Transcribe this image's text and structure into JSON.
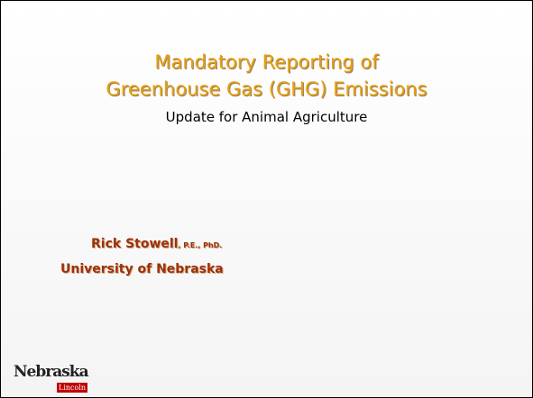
{
  "title": [
    "Mandatory Reporting of",
    "Greenhouse Gas (GHG) Emissions"
  ],
  "subtitle": "Update for Animal Agriculture",
  "author": {
    "name": "Rick Stowell",
    "credentials": ", P.E., PhD.",
    "affiliation": "University of Nebraska"
  },
  "logo": {
    "text": "Nebraska",
    "sub": "Lincoln"
  }
}
